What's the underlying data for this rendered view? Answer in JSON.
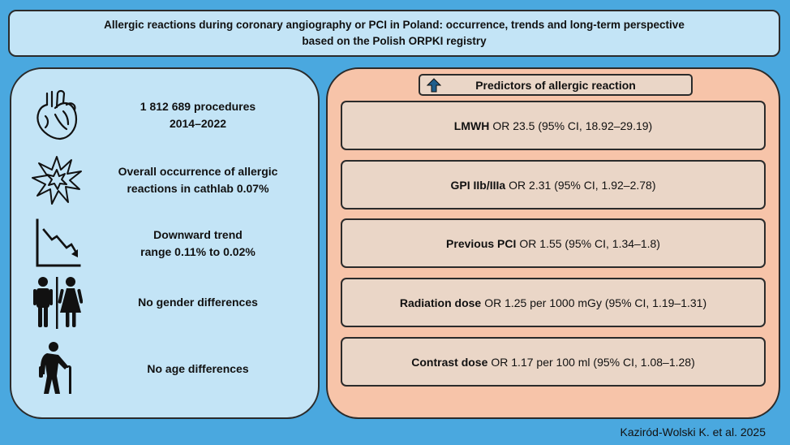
{
  "title": {
    "line1": "Allergic reactions during coronary angiography or PCI in Poland: occurrence, trends and long-term perspective",
    "line2": "based on the Polish ORPKI registry"
  },
  "findings": [
    {
      "icon": "heart-icon",
      "line1": "1 812 689 procedures",
      "line2": "2014–2022"
    },
    {
      "icon": "burst-icon",
      "line1": "Overall occurrence of allergic",
      "line2": "reactions in cathlab 0.07%"
    },
    {
      "icon": "downward-trend-icon",
      "line1": "Downward trend",
      "line2": "range 0.11% to 0.02%"
    },
    {
      "icon": "gender-icon",
      "line1": "No gender differences",
      "line2": ""
    },
    {
      "icon": "elderly-person-icon",
      "line1": "No age differences",
      "line2": ""
    }
  ],
  "predictors": {
    "header": "Predictors of allergic reaction",
    "items": [
      {
        "name": "LMWH",
        "value": "OR 23.5 (95% CI, 18.92–29.19)"
      },
      {
        "name": "GPI IIb/IIIa",
        "value": "OR 2.31 (95% CI, 1.92–2.78)"
      },
      {
        "name": "Previous PCI",
        "value": "OR 1.55 (95% CI, 1.34–1.8)"
      },
      {
        "name": "Radiation dose",
        "value": "OR 1.25 per 1000 mGy (95% CI, 1.19–1.31)"
      },
      {
        "name": "Contrast dose",
        "value": "OR 1.17 per 100 ml (95% CI, 1.08–1.28)"
      }
    ]
  },
  "citation": "Kaziród-Wolski K. et al. 2025"
}
